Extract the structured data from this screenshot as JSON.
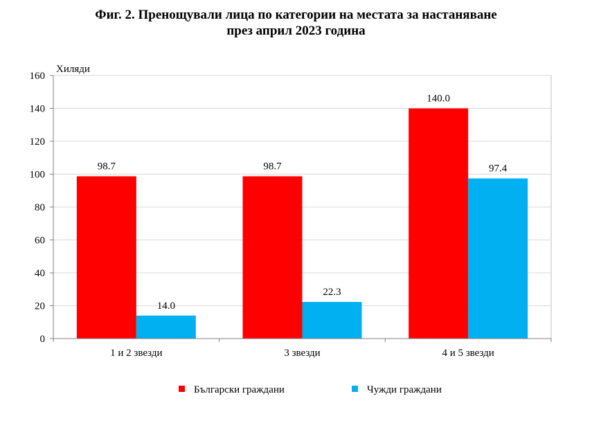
{
  "chart_data": {
    "type": "bar",
    "title_line1": "Фиг. 2. Пренощували лица по категории на местата за настаняване",
    "title_line2": "през април 2023 година",
    "ylabel": "Хиляди",
    "ylim": [
      0,
      160
    ],
    "yticks": [
      "0",
      "20",
      "40",
      "60",
      "80",
      "100",
      "120",
      "140",
      "160"
    ],
    "categories": [
      "1 и 2 звезди",
      "3 звезди",
      "4 и 5 звезди"
    ],
    "grid": true,
    "legend_position": "bottom",
    "series": [
      {
        "name": "Български граждани",
        "color": "#ff0000",
        "values": [
          98.7,
          98.7,
          140.0
        ],
        "labels": [
          "98.7",
          "98.7",
          "140.0"
        ]
      },
      {
        "name": "Чужди граждани",
        "color": "#00b0f0",
        "values": [
          14.0,
          22.3,
          97.4
        ],
        "labels": [
          "14.0",
          "22.3",
          "97.4"
        ]
      }
    ]
  }
}
